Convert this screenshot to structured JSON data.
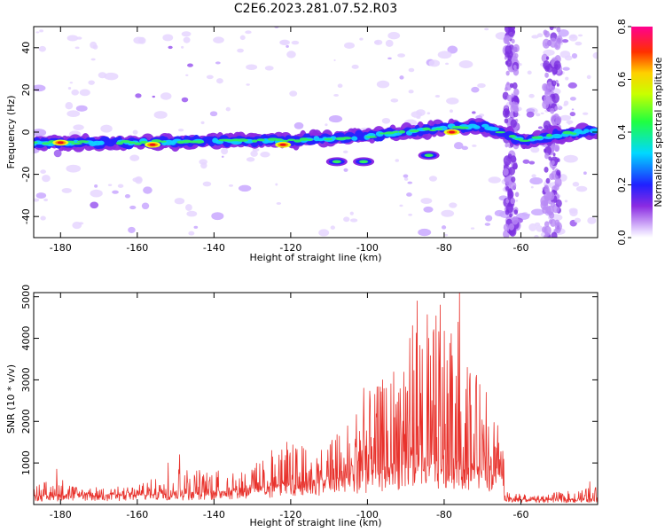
{
  "figure": {
    "title": "C2E6.2023.281.07.52.R03"
  },
  "chart_data": [
    {
      "type": "heatmap",
      "xlabel": "Height of straight line (km)",
      "ylabel": "Frequency (Hz)",
      "xlim": [
        -187,
        -40
      ],
      "ylim": [
        -50,
        50
      ],
      "x_ticks": [
        -180,
        -160,
        -140,
        -120,
        -100,
        -80,
        -60
      ],
      "y_ticks": [
        -40,
        -20,
        0,
        20,
        40
      ],
      "colorbar": {
        "label": "Normalized spectral amplitude",
        "range": [
          0.0,
          0.8
        ],
        "ticks": [
          0.0,
          0.2,
          0.4,
          0.6,
          0.8
        ],
        "colormap": "rainbow (white-violet-blue-cyan-green-yellow-red-magenta)"
      },
      "main_band": [
        {
          "x": -187,
          "y": -5
        },
        {
          "x": -160,
          "y": -5
        },
        {
          "x": -140,
          "y": -4
        },
        {
          "x": -120,
          "y": -4
        },
        {
          "x": -100,
          "y": -2
        },
        {
          "x": -80,
          "y": 2
        },
        {
          "x": -70,
          "y": 3
        },
        {
          "x": -60,
          "y": -4
        },
        {
          "x": -45,
          "y": 0
        },
        {
          "x": -40,
          "y": 0
        }
      ],
      "secondary_features": [
        {
          "x": -108,
          "y": -14
        },
        {
          "x": -101,
          "y": -14
        },
        {
          "x": -84,
          "y": -11
        }
      ],
      "peaks": [
        {
          "x": -180,
          "y": -5
        },
        {
          "x": -156,
          "y": -6
        },
        {
          "x": -122,
          "y": -6
        },
        {
          "x": -78,
          "y": 0
        }
      ]
    },
    {
      "type": "line",
      "xlabel": "Height of straight line (km)",
      "ylabel": "SNR (10 * v/v)",
      "xlim": [
        -187,
        -40
      ],
      "ylim": [
        0,
        5100
      ],
      "x_ticks": [
        -180,
        -160,
        -140,
        -120,
        -100,
        -80,
        -60
      ],
      "y_ticks": [
        1000,
        2000,
        3000,
        4000,
        5000
      ],
      "line_color": "#e8322c",
      "envelope": [
        {
          "x": -187,
          "y": 500
        },
        {
          "x": -180,
          "y": 650
        },
        {
          "x": -175,
          "y": 400
        },
        {
          "x": -160,
          "y": 450
        },
        {
          "x": -150,
          "y": 900
        },
        {
          "x": -140,
          "y": 850
        },
        {
          "x": -130,
          "y": 950
        },
        {
          "x": -120,
          "y": 1500
        },
        {
          "x": -115,
          "y": 1300
        },
        {
          "x": -110,
          "y": 1500
        },
        {
          "x": -100,
          "y": 2700
        },
        {
          "x": -95,
          "y": 3000
        },
        {
          "x": -90,
          "y": 4200
        },
        {
          "x": -85,
          "y": 4700
        },
        {
          "x": -80,
          "y": 4700
        },
        {
          "x": -77,
          "y": 4800
        },
        {
          "x": -72,
          "y": 3200
        },
        {
          "x": -68,
          "y": 2500
        },
        {
          "x": -65,
          "y": 2000
        },
        {
          "x": -64,
          "y": 300
        },
        {
          "x": -55,
          "y": 250
        },
        {
          "x": -45,
          "y": 350
        },
        {
          "x": -40,
          "y": 450
        }
      ],
      "baseline": [
        {
          "x": -187,
          "y": 200
        },
        {
          "x": -160,
          "y": 220
        },
        {
          "x": -140,
          "y": 280
        },
        {
          "x": -120,
          "y": 450
        },
        {
          "x": -100,
          "y": 700
        },
        {
          "x": -85,
          "y": 900
        },
        {
          "x": -70,
          "y": 800
        },
        {
          "x": -65,
          "y": 600
        },
        {
          "x": -64,
          "y": 100
        },
        {
          "x": -40,
          "y": 120
        }
      ],
      "spikes": [
        {
          "x": -181,
          "y": 850
        },
        {
          "x": -152,
          "y": 1000
        },
        {
          "x": -149,
          "y": 1200
        },
        {
          "x": -125,
          "y": 1300
        },
        {
          "x": -121,
          "y": 1500
        },
        {
          "x": -117,
          "y": 1400
        },
        {
          "x": -101,
          "y": 2800
        },
        {
          "x": -96,
          "y": 3000
        },
        {
          "x": -89,
          "y": 4000
        },
        {
          "x": -87,
          "y": 4900
        },
        {
          "x": -84,
          "y": 4000
        },
        {
          "x": -81,
          "y": 4800
        },
        {
          "x": -76,
          "y": 5100
        },
        {
          "x": -74,
          "y": 3300
        },
        {
          "x": -69,
          "y": 2700
        },
        {
          "x": -66,
          "y": 1900
        },
        {
          "x": -42,
          "y": 550
        }
      ]
    }
  ]
}
